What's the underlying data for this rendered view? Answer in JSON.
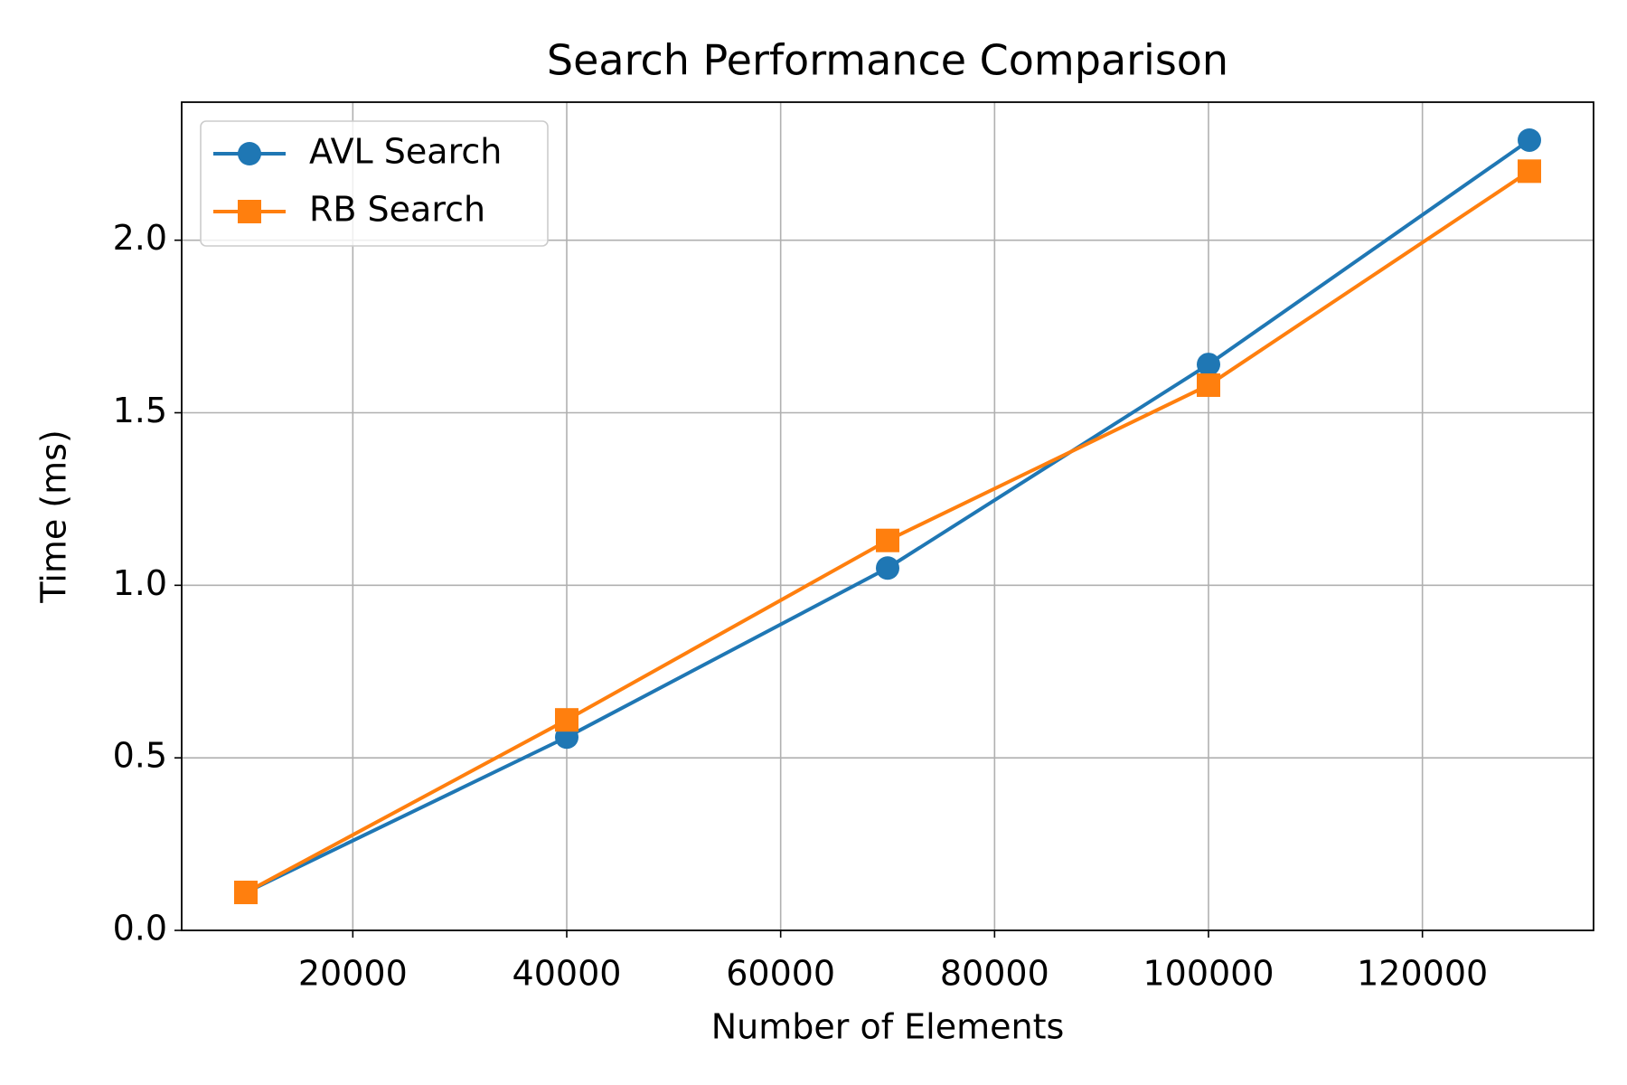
{
  "chart_data": {
    "type": "line",
    "title": "Search Performance Comparison",
    "x_label": "Number of Elements",
    "y_label": "Time (ms)",
    "x": [
      10000,
      40000,
      70000,
      100000,
      130000
    ],
    "series": [
      {
        "name": "AVL Search",
        "color": "#1f77b4",
        "marker": "circle",
        "values": [
          0.11,
          0.56,
          1.05,
          1.64,
          2.29
        ]
      },
      {
        "name": "RB Search",
        "color": "#ff7f0e",
        "marker": "square",
        "values": [
          0.11,
          0.61,
          1.13,
          1.58,
          2.2
        ]
      }
    ],
    "xlim": [
      4000,
      136000
    ],
    "xticks": [
      20000,
      40000,
      60000,
      80000,
      100000,
      120000
    ],
    "ylim": [
      0,
      2.4
    ],
    "yticks": [
      {
        "value": 0,
        "label": "0.0"
      },
      0.5,
      {
        "value": 1,
        "label": "1.0"
      },
      1.5,
      {
        "value": 2,
        "label": "2.0"
      }
    ],
    "grid": true,
    "legend": "upper left"
  }
}
